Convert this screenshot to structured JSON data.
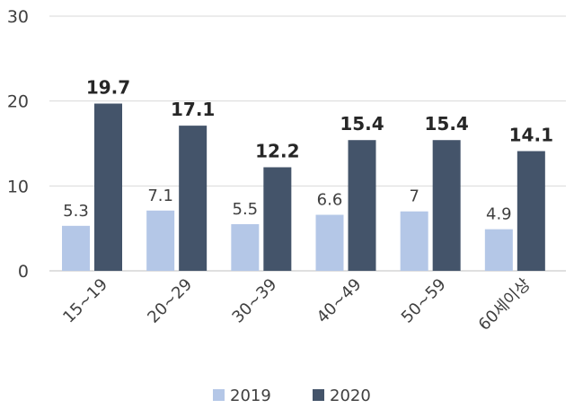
{
  "chart_data": {
    "type": "bar",
    "categories": [
      "15~19",
      "20~29",
      "30~39",
      "40~49",
      "50~59",
      "60세이상"
    ],
    "series": [
      {
        "name": "2019",
        "values": [
          5.3,
          7.1,
          5.5,
          6.6,
          7,
          4.9
        ],
        "color": "#b4c7e7"
      },
      {
        "name": "2020",
        "values": [
          19.7,
          17.1,
          12.2,
          15.4,
          15.4,
          14.1
        ],
        "color": "#44546a"
      }
    ],
    "ylim": [
      0,
      30
    ],
    "yticks": [
      0,
      10,
      20,
      30
    ],
    "grid": true,
    "legend": "bottom"
  }
}
